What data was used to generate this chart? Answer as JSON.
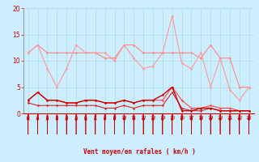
{
  "x": [
    0,
    1,
    2,
    3,
    4,
    5,
    6,
    7,
    8,
    9,
    10,
    11,
    12,
    13,
    14,
    15,
    16,
    17,
    18,
    19,
    20,
    21,
    22,
    23
  ],
  "series": [
    {
      "name": "line1_flat",
      "color": "#FF8888",
      "linewidth": 0.8,
      "markersize": 1.8,
      "y": [
        11.5,
        13.0,
        11.5,
        11.5,
        11.5,
        11.5,
        11.5,
        11.5,
        10.5,
        10.5,
        13.0,
        13.0,
        11.5,
        11.5,
        11.5,
        11.5,
        11.5,
        11.5,
        10.5,
        13.0,
        10.5,
        10.5,
        5.0,
        5.0
      ]
    },
    {
      "name": "line2_zigzag",
      "color": "#FF9999",
      "linewidth": 0.8,
      "markersize": 1.8,
      "y": [
        11.5,
        13.0,
        8.5,
        5.0,
        8.5,
        13.0,
        11.5,
        11.5,
        11.5,
        10.0,
        13.0,
        10.5,
        8.5,
        9.0,
        11.5,
        18.5,
        9.5,
        8.5,
        11.5,
        5.0,
        10.5,
        4.5,
        2.5,
        5.0
      ]
    },
    {
      "name": "line3_low",
      "color": "#FF4444",
      "linewidth": 0.8,
      "markersize": 1.8,
      "y": [
        2.5,
        4.0,
        2.5,
        2.5,
        2.0,
        2.0,
        2.5,
        2.5,
        2.0,
        2.0,
        2.5,
        2.0,
        2.5,
        2.5,
        2.5,
        5.0,
        2.5,
        1.0,
        1.0,
        1.5,
        1.0,
        1.0,
        0.5,
        0.5
      ]
    },
    {
      "name": "line4_lower",
      "color": "#DD2222",
      "linewidth": 0.8,
      "markersize": 1.8,
      "y": [
        2.0,
        1.5,
        1.5,
        1.5,
        1.5,
        1.5,
        1.5,
        1.5,
        1.0,
        1.0,
        1.5,
        1.0,
        1.5,
        1.5,
        1.5,
        4.0,
        1.0,
        0.5,
        0.5,
        1.0,
        0.5,
        0.5,
        0.5,
        0.5
      ]
    },
    {
      "name": "line5_trend",
      "color": "#CC0000",
      "linewidth": 1.0,
      "markersize": 1.8,
      "y": [
        2.5,
        4.0,
        2.5,
        2.5,
        2.0,
        2.0,
        2.5,
        2.5,
        2.0,
        2.0,
        2.5,
        2.0,
        2.5,
        2.5,
        3.5,
        5.0,
        0.5,
        0.5,
        1.0,
        1.0,
        0.5,
        0.5,
        0.5,
        0.5
      ]
    }
  ],
  "xlabel": "Vent moyen/en rafales ( km/h )",
  "xlim_lo": -0.5,
  "xlim_hi": 23.5,
  "ylim": [
    0,
    20
  ],
  "yticks": [
    0,
    5,
    10,
    15,
    20
  ],
  "xticks": [
    0,
    1,
    2,
    3,
    4,
    5,
    6,
    7,
    8,
    9,
    10,
    11,
    12,
    13,
    14,
    15,
    16,
    17,
    18,
    19,
    20,
    21,
    22,
    23
  ],
  "bg_color": "#cceeff",
  "grid_color": "#aadddd",
  "tick_color": "#CC0000",
  "label_color": "#CC0000",
  "arrow_color": "#CC0000"
}
